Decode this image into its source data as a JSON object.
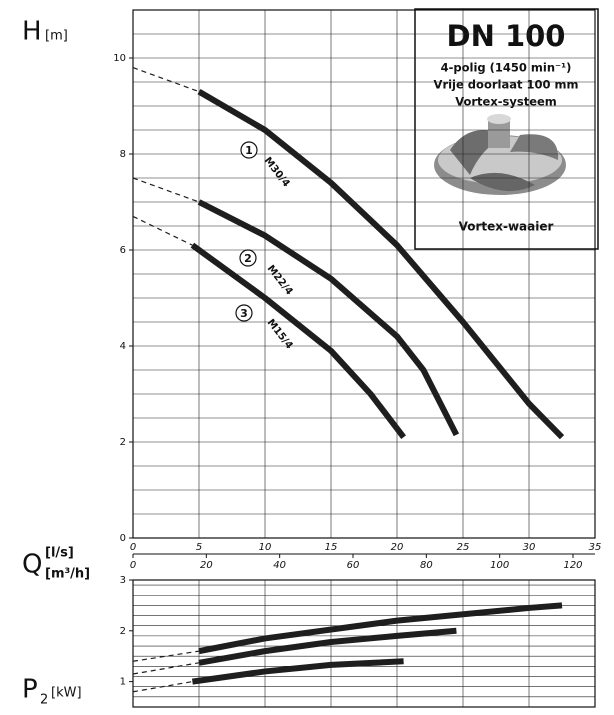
{
  "chart_data": [
    {
      "type": "line",
      "y_label": "H",
      "y_unit": "[m]",
      "x_label": "Q",
      "x_unit": "[l/s]",
      "x2_unit": "[m³/h]",
      "xlim": [
        0,
        35
      ],
      "xticks": [
        0,
        5,
        10,
        15,
        20,
        25,
        30,
        35
      ],
      "x2lim": [
        0,
        126
      ],
      "x2ticks": [
        0,
        20,
        40,
        60,
        80,
        100,
        120
      ],
      "ylim": [
        0,
        11
      ],
      "yticks": [
        0,
        2,
        4,
        6,
        8,
        10
      ],
      "ygrid": [
        0.5,
        1,
        1.5,
        2,
        2.5,
        3,
        3.5,
        4,
        4.5,
        5,
        5.5,
        6,
        6.5,
        7,
        7.5,
        8,
        8.5,
        9,
        9.5,
        10,
        10.5,
        11
      ],
      "grid": true,
      "series": [
        {
          "name": "M30/4",
          "number": "1",
          "color": "#1e1e1e",
          "x": [
            5,
            10,
            15,
            20,
            25,
            30,
            32.5
          ],
          "values": [
            9.3,
            8.5,
            7.4,
            6.1,
            4.5,
            2.8,
            2.1
          ],
          "extrapolation": {
            "x": [
              0,
              5
            ],
            "values": [
              9.8,
              9.3
            ]
          }
        },
        {
          "name": "M22/4",
          "number": "2",
          "color": "#1e1e1e",
          "x": [
            5,
            10,
            15,
            20,
            22,
            24.5
          ],
          "values": [
            7.0,
            6.3,
            5.4,
            4.2,
            3.5,
            2.15
          ],
          "extrapolation": {
            "x": [
              0,
              5
            ],
            "values": [
              7.5,
              7.0
            ]
          }
        },
        {
          "name": "M15/4",
          "number": "3",
          "color": "#1e1e1e",
          "x": [
            4.5,
            10,
            15,
            18,
            20.5
          ],
          "values": [
            6.1,
            5.0,
            3.9,
            3.0,
            2.1
          ],
          "extrapolation": {
            "x": [
              0,
              4.5
            ],
            "values": [
              6.7,
              6.1
            ]
          }
        }
      ]
    },
    {
      "type": "line",
      "y_label": "P",
      "y_label_sub": "2",
      "y_unit": "[kW]",
      "xlim": [
        0,
        35
      ],
      "xgrid": [
        5,
        10,
        15,
        20,
        25,
        30
      ],
      "ylim": [
        0.5,
        3
      ],
      "yticks": [
        1,
        2,
        3
      ],
      "ygrid": [
        0.7,
        0.9,
        1.1,
        1.3,
        1.5,
        1.7,
        1.9,
        2.1,
        2.3,
        2.5,
        2.7,
        2.9
      ],
      "grid": true,
      "series": [
        {
          "name": "M30/4",
          "color": "#1e1e1e",
          "x": [
            5,
            10,
            20,
            30,
            32.5
          ],
          "values": [
            1.6,
            1.85,
            2.2,
            2.45,
            2.5
          ],
          "extrapolation": {
            "x": [
              0,
              5
            ],
            "values": [
              1.4,
              1.6
            ]
          }
        },
        {
          "name": "M22/4",
          "color": "#1e1e1e",
          "x": [
            5,
            10,
            15,
            20,
            24.5
          ],
          "values": [
            1.37,
            1.6,
            1.78,
            1.9,
            2.0
          ],
          "extrapolation": {
            "x": [
              0,
              5
            ],
            "values": [
              1.15,
              1.37
            ]
          }
        },
        {
          "name": "M15/4",
          "color": "#1e1e1e",
          "x": [
            4.5,
            10,
            15,
            20.5
          ],
          "values": [
            1.0,
            1.2,
            1.33,
            1.4
          ],
          "extrapolation": {
            "x": [
              0,
              4.5
            ],
            "values": [
              0.8,
              1.0
            ]
          }
        }
      ]
    }
  ],
  "info_box": {
    "title": "DN 100",
    "lines": [
      "4-polig (1450 min⁻¹)",
      "Vrije doorlaat 100 mm",
      "Vortex-systeem"
    ],
    "caption": "Vortex-waaier"
  }
}
